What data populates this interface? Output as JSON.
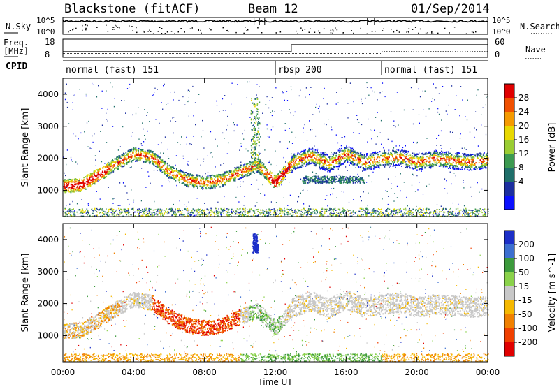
{
  "header": {
    "station": "Blackstone (fitACF)",
    "beam": "Beam 12",
    "date": "01/Sep/2014"
  },
  "noise_panel": {
    "left_label": "N.Sky",
    "right_label": "N.Search",
    "tick_top": "10^5",
    "tick_bottom": "10^0"
  },
  "freq_panel": {
    "left_label_1": "Freq.",
    "left_label_2": "[MHz]",
    "right_label": "Nave",
    "left_ticks": [
      "18",
      "8"
    ],
    "right_ticks": [
      "60",
      "0"
    ]
  },
  "cpid_panel": {
    "label": "CPID",
    "segments": [
      {
        "name": "normal (fast) 151",
        "start_hour": 0
      },
      {
        "name": "rbsp 200",
        "start_hour": 12
      },
      {
        "name": "normal (fast) 151",
        "start_hour": 18
      }
    ]
  },
  "chart_data": [
    {
      "type": "heatmap",
      "parameter": "power",
      "ylabel": "Slant Range [km]",
      "ylim": [
        180,
        4500
      ],
      "yticks": [
        1000,
        2000,
        3000,
        4000
      ],
      "xlim": [
        0,
        24
      ],
      "colorbar_label": "Power [dB]",
      "colorbar_ticks": [
        "28",
        "24",
        "20",
        "16",
        "12",
        "8",
        "4"
      ],
      "colorbar_colors": [
        "#e00000",
        "#f05000",
        "#f59a00",
        "#e8d800",
        "#9acd32",
        "#3c9a50",
        "#1f6f6a",
        "#1c2fa0",
        "#0a10ff"
      ],
      "bands": [
        {
          "t": [
            0,
            1,
            2,
            3,
            4,
            5,
            6,
            7,
            8,
            9,
            10,
            11,
            12,
            13,
            14,
            15,
            16,
            17,
            18,
            19,
            20,
            21,
            22,
            23,
            24
          ],
          "r": [
            1150,
            1180,
            1500,
            1850,
            2150,
            2050,
            1600,
            1350,
            1250,
            1350,
            1600,
            1800,
            1250,
            1900,
            2100,
            1850,
            2150,
            1900,
            2000,
            2050,
            1900,
            2000,
            1950,
            1900,
            1950
          ]
        }
      ]
    },
    {
      "type": "heatmap",
      "parameter": "velocity",
      "ylabel": "Slant Range [km]",
      "ylim": [
        180,
        4500
      ],
      "yticks": [
        1000,
        2000,
        3000,
        4000
      ],
      "xlim": [
        0,
        24
      ],
      "xticks": [
        "00:00",
        "04:00",
        "08:00",
        "12:00",
        "16:00",
        "20:00",
        "00:00"
      ],
      "xlabel": "Time UT",
      "colorbar_label": "Velocity [m s^-1]",
      "colorbar_ticks": [
        "200",
        "100",
        "50",
        "15",
        "-15",
        "-50",
        "-100",
        "-200"
      ],
      "colorbar_colors": [
        "#1c2fc8",
        "#3c6fd0",
        "#3c9a3c",
        "#8ad24a",
        "#c8c8c8",
        "#f5b800",
        "#f08000",
        "#f04000",
        "#e00000"
      ]
    }
  ]
}
